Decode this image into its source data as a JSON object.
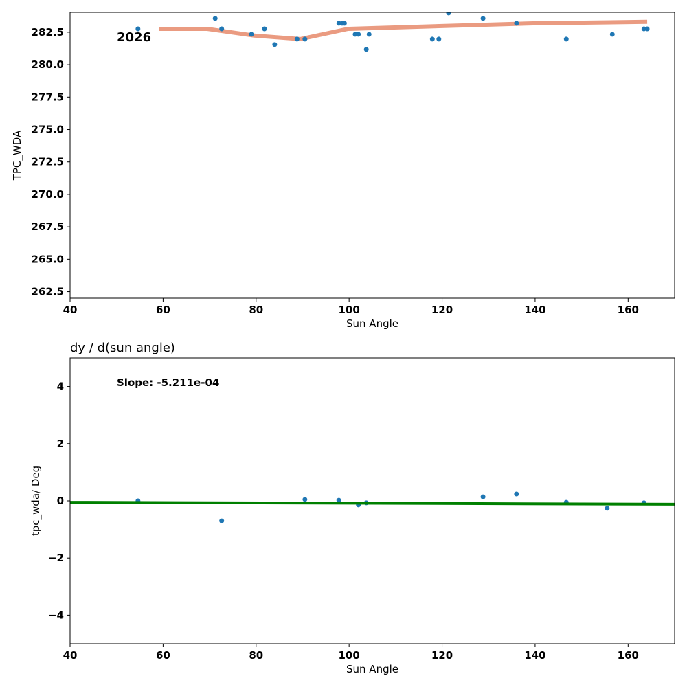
{
  "chart_data": [
    {
      "type": "scatter",
      "title": "",
      "annotation": "2026",
      "xlabel": "Sun Angle",
      "ylabel": "TPC_WDA",
      "xlim": [
        40,
        170
      ],
      "ylim": [
        262.0,
        284.03
      ],
      "xticks": [
        40,
        60,
        80,
        100,
        120,
        140,
        160
      ],
      "yticks": [
        262.5,
        265.0,
        267.5,
        270.0,
        272.5,
        275.0,
        277.5,
        280.0,
        282.5
      ],
      "ytick_labels": [
        "262.5",
        "265.0",
        "267.5",
        "270.0",
        "272.5",
        "275.0",
        "277.5",
        "280.0",
        "282.5"
      ],
      "points": {
        "x": [
          54.6,
          71.2,
          72.6,
          79.0,
          81.8,
          84.0,
          88.8,
          90.5,
          97.8,
          98.5,
          99.0,
          101.3,
          102.0,
          103.7,
          104.3,
          117.9,
          119.3,
          121.4,
          128.8,
          136.0,
          146.7,
          156.6,
          163.4,
          164.1
        ],
        "y": [
          282.76,
          283.56,
          282.76,
          282.34,
          282.76,
          281.55,
          281.97,
          281.97,
          283.19,
          283.19,
          283.19,
          282.34,
          282.34,
          281.18,
          282.34,
          281.97,
          281.97,
          283.98,
          283.56,
          283.19,
          281.97,
          282.34,
          282.76,
          282.76
        ],
        "color": "#1f77b4"
      },
      "trend": {
        "x": [
          59.2,
          69.5,
          79.6,
          89.5,
          99.8,
          140.2,
          164.1
        ],
        "y": [
          282.76,
          282.76,
          282.24,
          281.97,
          282.76,
          283.19,
          283.3
        ],
        "color": "#e9967a"
      }
    },
    {
      "type": "scatter",
      "title": "dy / d(sun angle)",
      "annotation": "Slope: -5.211e-04",
      "xlabel": "Sun Angle",
      "ylabel": "tpc_wda/ Deg",
      "xlim": [
        40,
        170
      ],
      "ylim": [
        -5,
        5
      ],
      "xticks": [
        40,
        60,
        80,
        100,
        120,
        140,
        160
      ],
      "yticks": [
        -4,
        -2,
        0,
        2,
        4
      ],
      "ytick_labels": [
        "−4",
        "−2",
        "0",
        "2",
        "4"
      ],
      "points": {
        "x": [
          54.6,
          72.6,
          90.5,
          97.8,
          102.0,
          103.7,
          128.8,
          136.0,
          146.7,
          155.5,
          163.4
        ],
        "y": [
          0.0,
          -0.7,
          0.05,
          0.02,
          -0.14,
          -0.07,
          0.14,
          0.24,
          -0.05,
          -0.26,
          -0.07
        ],
        "color": "#1f77b4"
      },
      "fit": {
        "x": [
          40,
          170
        ],
        "y": [
          -0.05,
          -0.118
        ],
        "color": "#008000"
      }
    }
  ]
}
